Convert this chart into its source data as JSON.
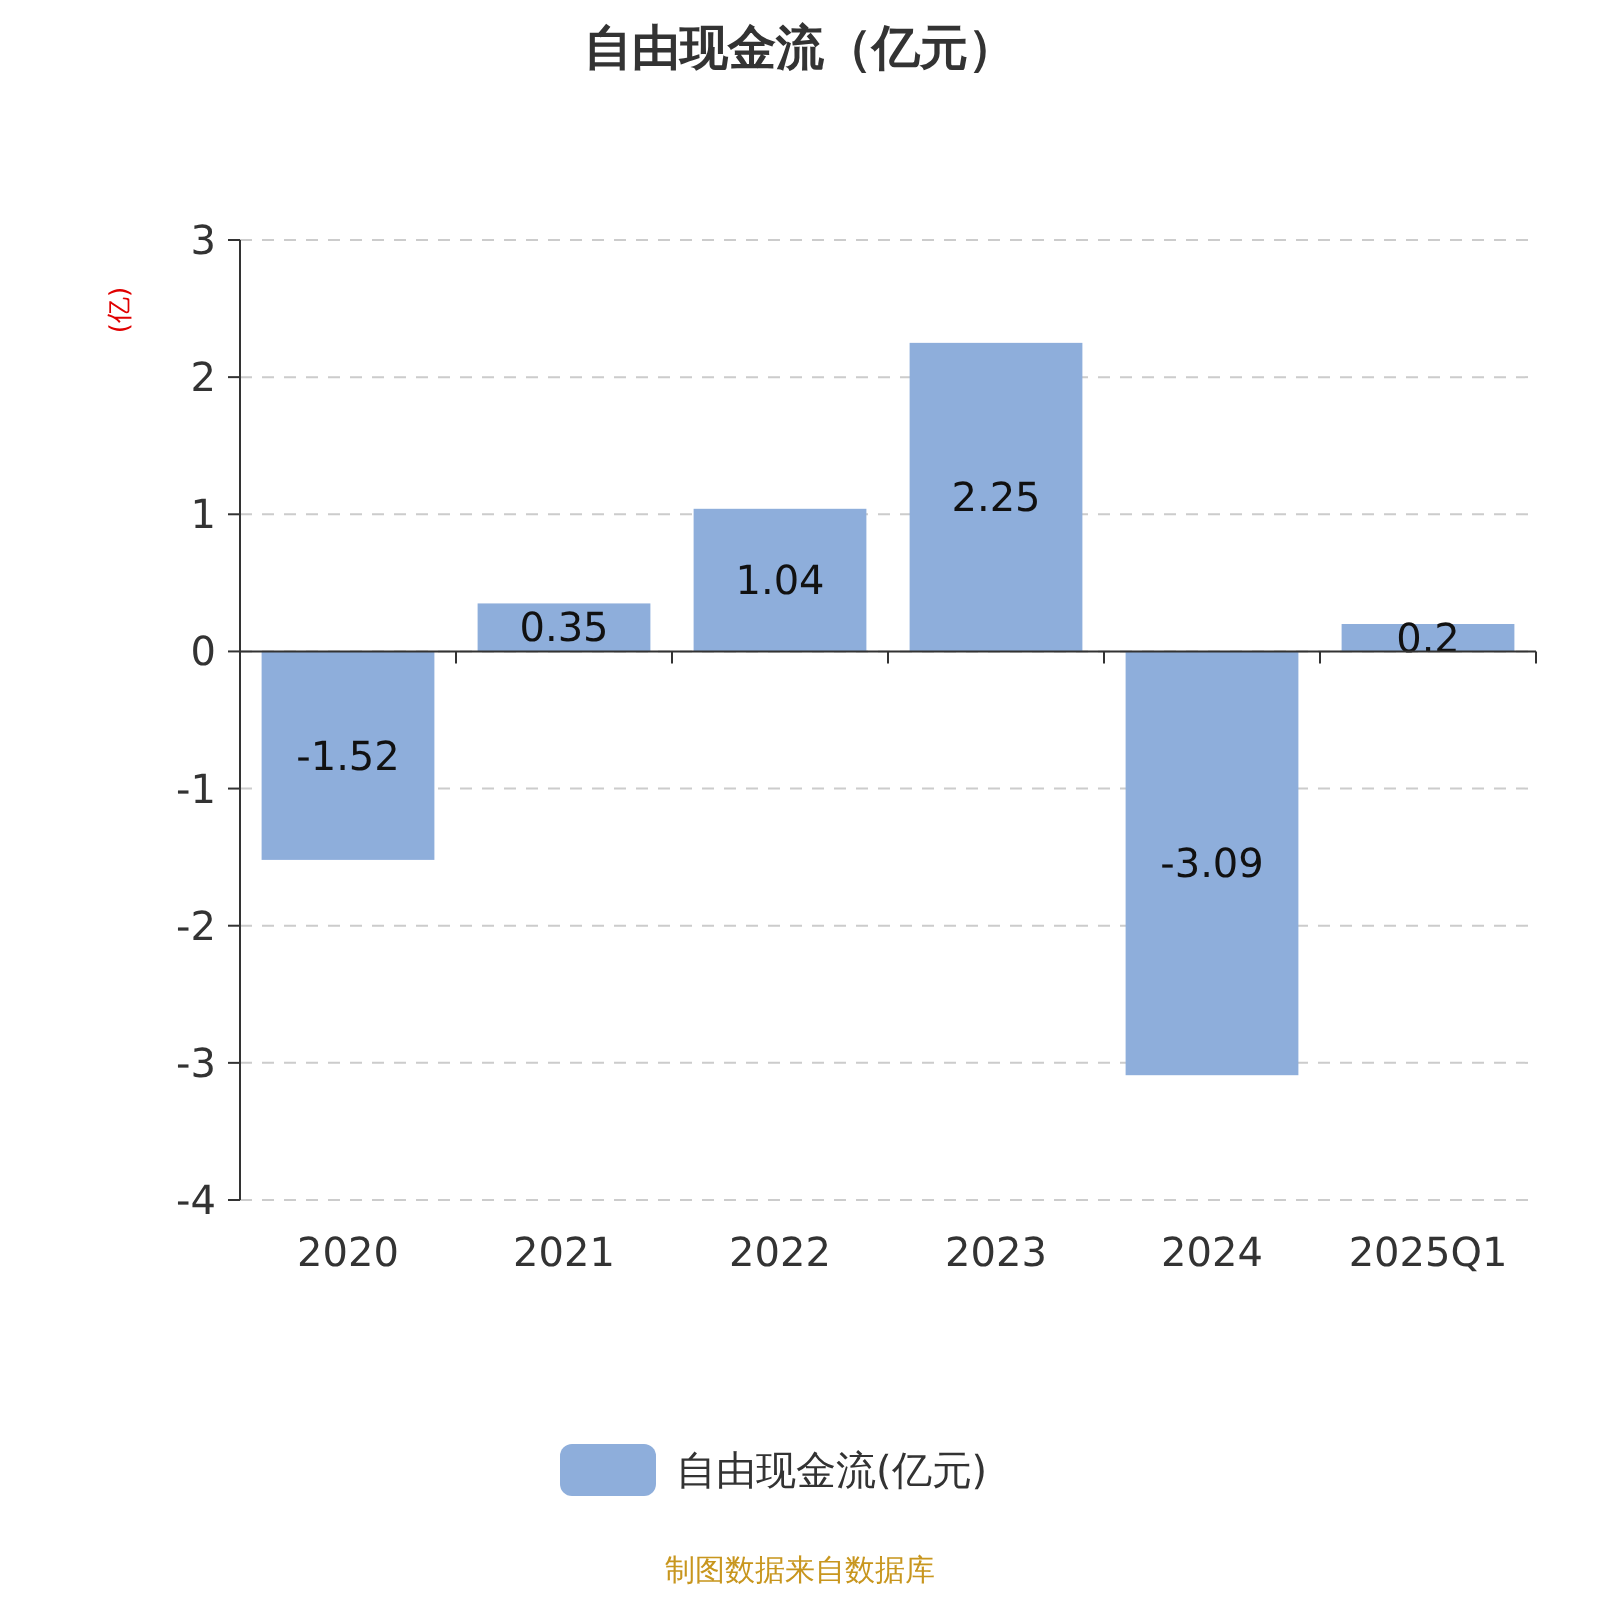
{
  "chart_data": {
    "type": "bar",
    "title": "自由现金流（亿元）",
    "ylabel": "(亿)",
    "categories": [
      "2020",
      "2021",
      "2022",
      "2023",
      "2024",
      "2025Q1"
    ],
    "series": [
      {
        "name": "自由现金流(亿元)",
        "color": "#8eaedb",
        "values": [
          -1.52,
          0.35,
          1.04,
          2.25,
          -3.09,
          0.2
        ]
      }
    ],
    "ylim": [
      -4,
      3
    ],
    "yticks": [
      -4,
      -3,
      -2,
      -1,
      0,
      1,
      2,
      3
    ],
    "grid": "y",
    "legend": "bottom",
    "data_labels": true,
    "annotations": [
      "制图数据来自数据库"
    ]
  }
}
